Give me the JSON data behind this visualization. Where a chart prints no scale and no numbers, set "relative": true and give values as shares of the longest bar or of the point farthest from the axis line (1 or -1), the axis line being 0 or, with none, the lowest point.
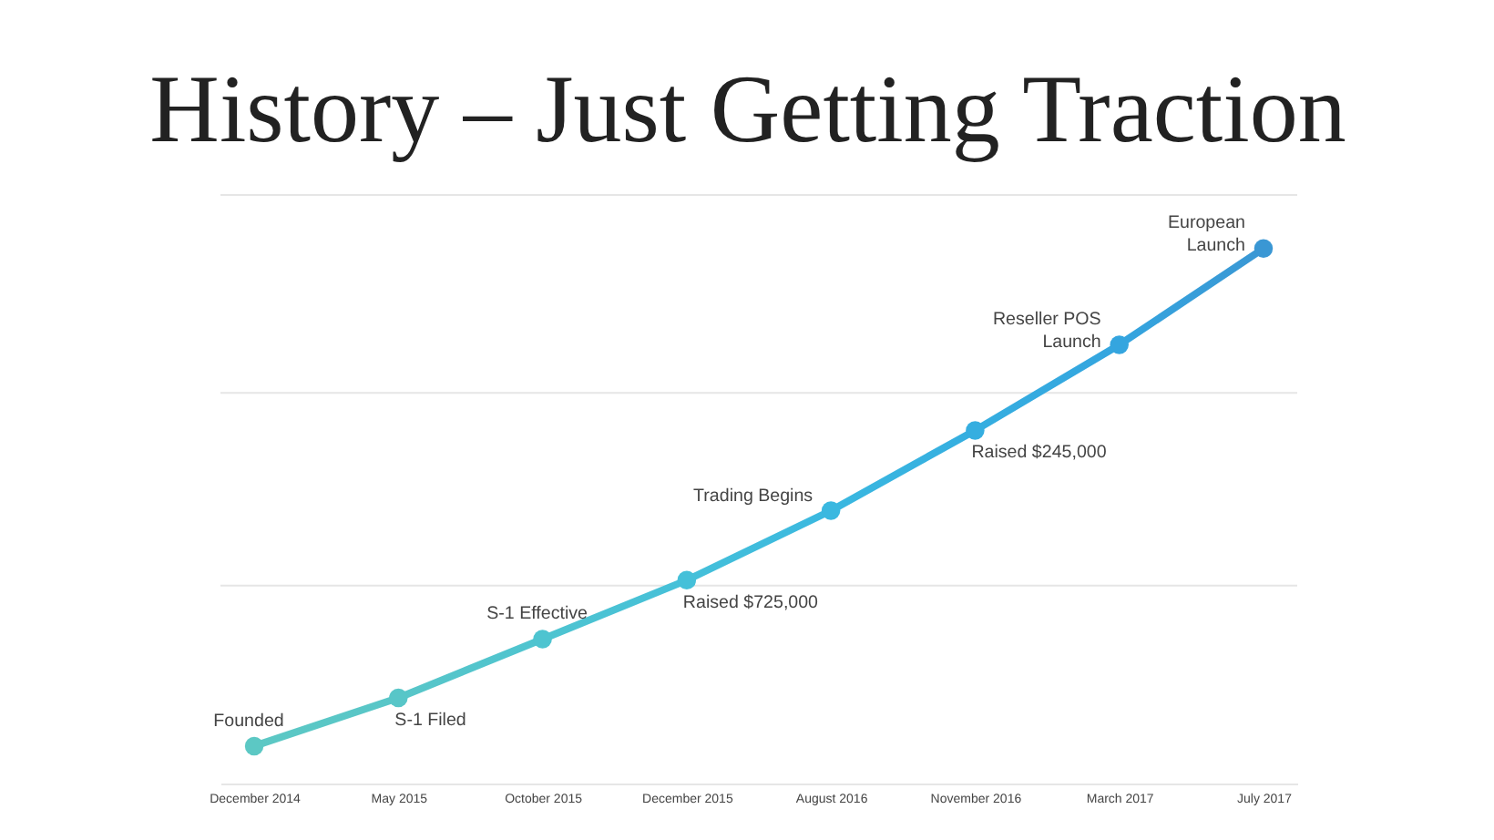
{
  "chart_data": {
    "type": "line",
    "title": "History – Just Getting Traction",
    "categories": [
      "December 2014",
      "May 2015",
      "October 2015",
      "December 2015",
      "August 2016",
      "November 2016",
      "March 2017",
      "July 2017"
    ],
    "relative": true,
    "series": [
      {
        "colors": [
          "#5cc8c4",
          "#58c6c8",
          "#4ec4d0",
          "#45c0d9",
          "#3ab8e0",
          "#35aee0",
          "#34a5df",
          "#3a97d4"
        ],
        "values": [
          0.07,
          0.16,
          0.27,
          0.38,
          0.51,
          0.66,
          0.82,
          1
        ]
      }
    ],
    "marker": "circle",
    "ref_lines": [
      {
        "axis": "y",
        "value": 0.37,
        "color": "#e6e6e6"
      },
      {
        "axis": "y",
        "value": 0.73,
        "color": "#e6e6e6"
      },
      {
        "axis": "y",
        "value": 1.1,
        "color": "#e6e6e6"
      }
    ],
    "annotations": [
      {
        "text": "Founded",
        "x": "December 2014",
        "y": 0.07
      },
      {
        "text": "S-1 Filed",
        "x": "May 2015",
        "y": 0.16
      },
      {
        "text": "S-1 Effective",
        "x": "October 2015",
        "y": 0.27
      },
      {
        "text": "Raised $725,000",
        "x": "December 2015",
        "y": 0.38
      },
      {
        "text": "Trading Begins",
        "x": "August 2016",
        "y": 0.51
      },
      {
        "text": "Raised $245,000",
        "x": "November 2016",
        "y": 0.66
      },
      {
        "text": "Reseller POS\nLaunch",
        "x": "March 2017",
        "y": 0.82
      },
      {
        "text": "European\nLaunch",
        "x": "July 2017",
        "y": 1
      }
    ]
  }
}
